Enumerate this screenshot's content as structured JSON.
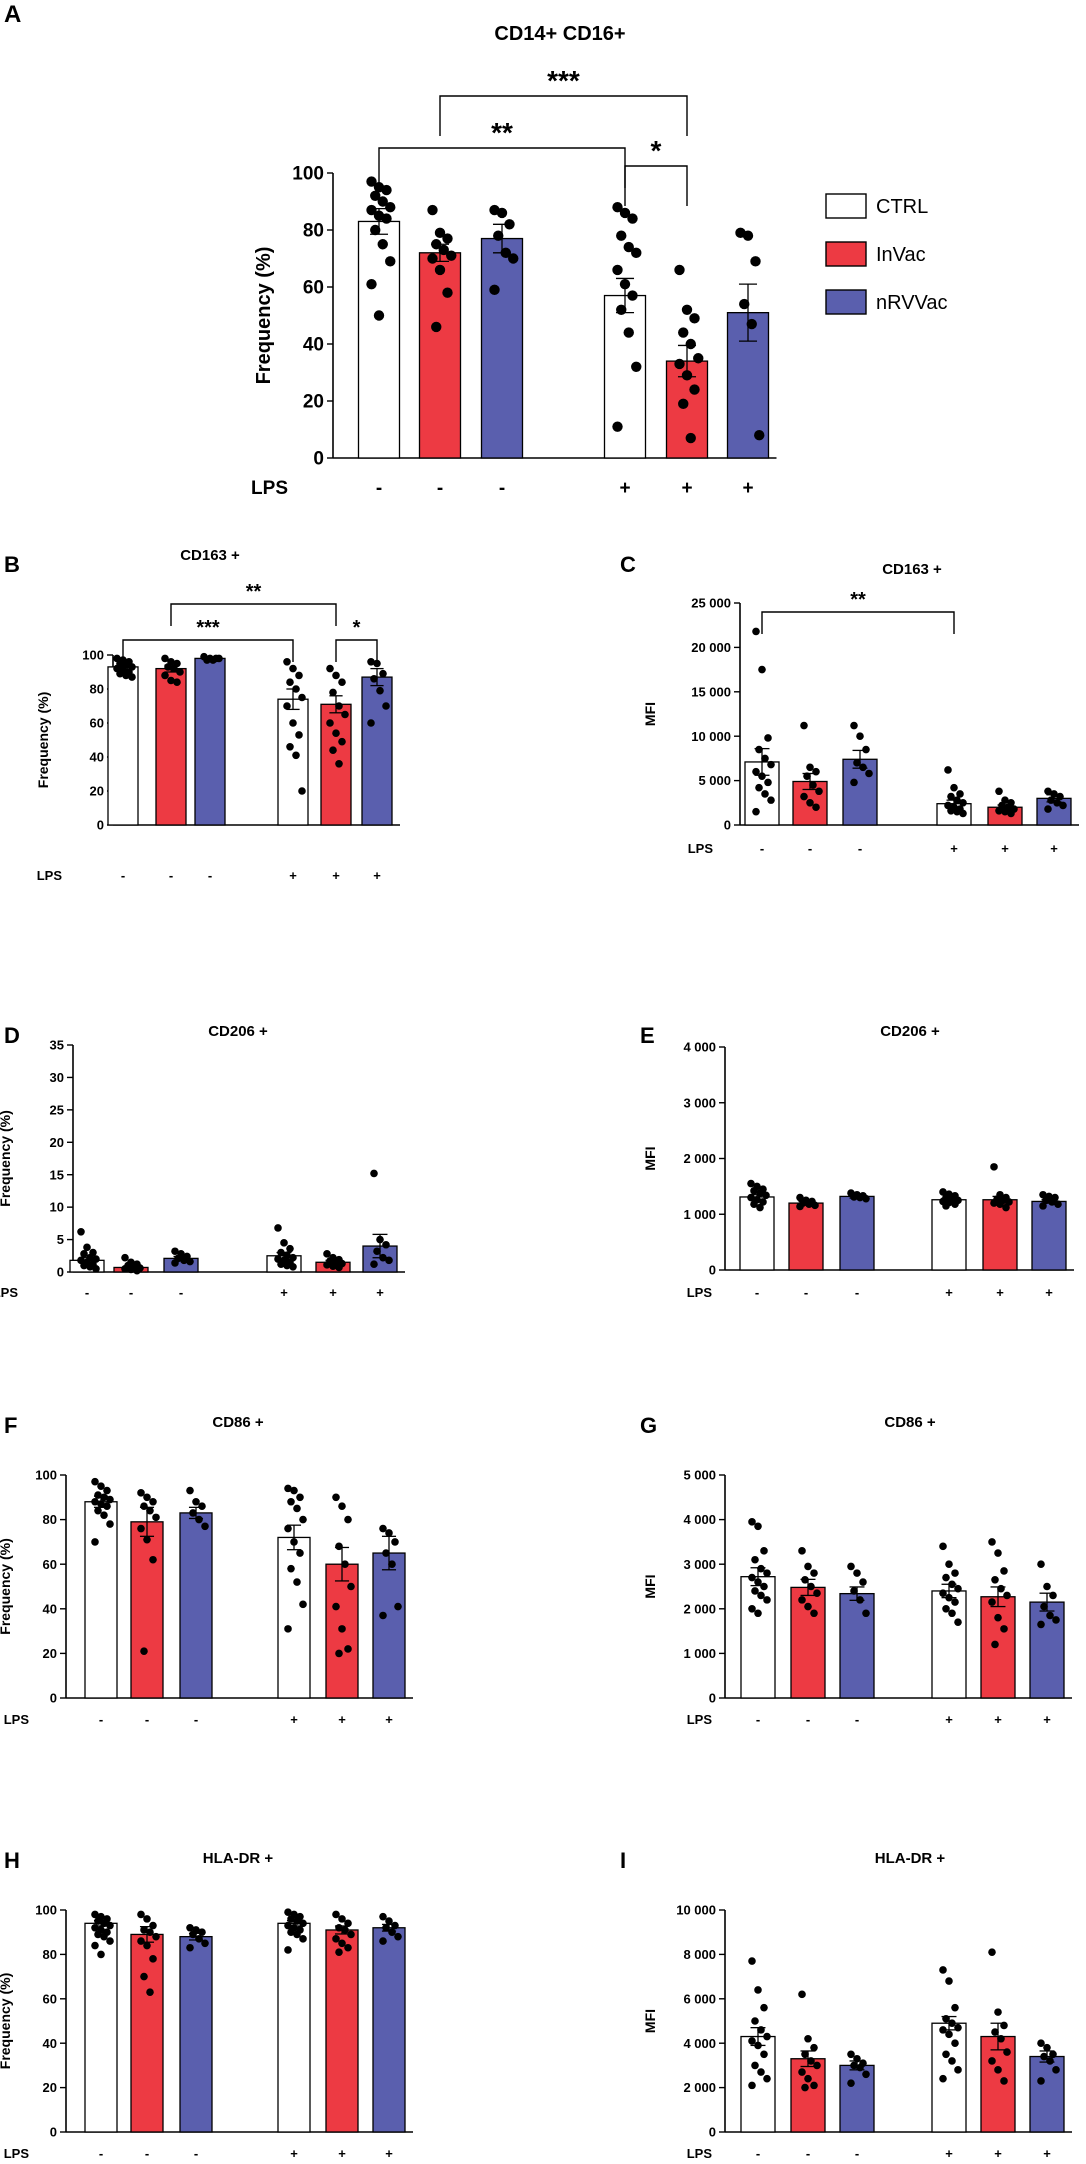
{
  "colors": {
    "CTRL": "#ffffff",
    "InVac": "#ed3a43",
    "nRVVac": "#5a5fae",
    "dot": "#000000"
  },
  "legend": {
    "items": [
      {
        "label": "CTRL",
        "color": "#ffffff"
      },
      {
        "label": "InVac",
        "color": "#ed3a43"
      },
      {
        "label": "nRVVac",
        "color": "#5a5fae"
      }
    ]
  },
  "lps": {
    "label": "LPS",
    "signs": [
      "-",
      "-",
      "-",
      "+",
      "+",
      "+"
    ]
  },
  "chart_data": [
    {
      "panel": "A",
      "title": "CD14+ CD16+",
      "type": "bar",
      "ylabel": "Frequency (%)",
      "ylim": [
        0,
        100
      ],
      "yticks": [
        "0",
        "20",
        "40",
        "60",
        "80",
        "100"
      ],
      "categories": [
        "CTRL",
        "InVac",
        "nRVVac",
        "CTRL",
        "InVac",
        "nRVVac"
      ],
      "values": [
        83,
        72,
        77,
        57,
        34,
        51
      ],
      "sem": [
        4.5,
        3,
        5,
        6,
        5.5,
        10
      ],
      "points": [
        [
          97,
          95,
          94,
          92,
          90,
          88,
          87,
          85,
          84,
          80,
          75,
          69,
          61,
          50
        ],
        [
          87,
          79,
          77,
          75,
          73,
          71,
          70,
          66,
          58,
          46
        ],
        [
          87,
          86,
          82,
          78,
          72,
          70,
          59
        ],
        [
          88,
          86,
          84,
          78,
          74,
          72,
          66,
          61,
          57,
          52,
          44,
          32,
          11
        ],
        [
          66,
          52,
          49,
          44,
          40,
          35,
          33,
          29,
          24,
          19,
          7
        ],
        [
          79,
          78,
          69,
          54,
          47,
          8
        ]
      ],
      "significance": [
        {
          "from": 0,
          "to": 3,
          "label": "**"
        },
        {
          "from": 1,
          "to": 4,
          "label": "***"
        },
        {
          "from": 3,
          "to": 4,
          "label": "*"
        }
      ]
    },
    {
      "panel": "B",
      "title": "CD163 +",
      "type": "bar",
      "ylabel": "Frequency (%)",
      "ylim": [
        0,
        100
      ],
      "yticks": [
        "0",
        "20",
        "40",
        "60",
        "80",
        "100"
      ],
      "categories": [
        "CTRL",
        "InVac",
        "nRVVac",
        "CTRL",
        "InVac",
        "nRVVac"
      ],
      "values": [
        93,
        92,
        98,
        74,
        71,
        87
      ],
      "sem": [
        1.5,
        2,
        0.5,
        6,
        5,
        5
      ],
      "points": [
        [
          98,
          97,
          96,
          95,
          94,
          93,
          92,
          91,
          90,
          89,
          88,
          87
        ],
        [
          98,
          96,
          95,
          93,
          92,
          90,
          88,
          85,
          84
        ],
        [
          99,
          98,
          98,
          97,
          97,
          98
        ],
        [
          96,
          92,
          88,
          84,
          80,
          75,
          70,
          60,
          53,
          46,
          41,
          20
        ],
        [
          92,
          88,
          84,
          78,
          70,
          65,
          60,
          54,
          49,
          44,
          36
        ],
        [
          96,
          95,
          89,
          86,
          79,
          70,
          60
        ]
      ],
      "significance": [
        {
          "from": 0,
          "to": 3,
          "label": "***"
        },
        {
          "from": 1,
          "to": 4,
          "label": "**"
        },
        {
          "from": 4,
          "to": 5,
          "label": "*"
        }
      ]
    },
    {
      "panel": "C",
      "title": "CD163 +",
      "type": "bar",
      "ylabel": "MFI",
      "ylim": [
        0,
        25000
      ],
      "yticks": [
        "0",
        "5 000",
        "10 000",
        "15 000",
        "20 000",
        "25 000"
      ],
      "categories": [
        "CTRL",
        "InVac",
        "nRVVac",
        "CTRL",
        "InVac",
        "nRVVac"
      ],
      "values": [
        7100,
        4900,
        7400,
        2400,
        2000,
        3000
      ],
      "sem": [
        1500,
        900,
        1000,
        400,
        250,
        400
      ],
      "points": [
        [
          21800,
          17500,
          9800,
          8500,
          7500,
          6800,
          6000,
          5500,
          4800,
          4200,
          3500,
          2800,
          1500
        ],
        [
          11200,
          6500,
          6000,
          5500,
          4500,
          3800,
          3200,
          2500,
          2000
        ],
        [
          11200,
          10000,
          8500,
          7000,
          6500,
          5800,
          4800
        ],
        [
          6200,
          4200,
          3500,
          3200,
          2800,
          2500,
          2200,
          2000,
          1800,
          1600,
          1500,
          1300
        ],
        [
          3800,
          2800,
          2500,
          2200,
          2000,
          1800,
          1600,
          1500,
          1300
        ],
        [
          3800,
          3500,
          3200,
          2800,
          2500,
          2200,
          1800
        ]
      ],
      "significance": [
        {
          "from": 0,
          "to": 3,
          "label": "**"
        }
      ]
    },
    {
      "panel": "D",
      "title": "CD206 +",
      "type": "bar",
      "ylabel": "Frequency (%)",
      "ylim": [
        0,
        35
      ],
      "yticks": [
        "0",
        "5",
        "10",
        "15",
        "20",
        "25",
        "30",
        "35"
      ],
      "categories": [
        "CTRL",
        "InVac",
        "nRVVac",
        "CTRL",
        "InVac",
        "nRVVac"
      ],
      "values": [
        1.8,
        0.7,
        2.1,
        2.5,
        1.5,
        4
      ],
      "sem": [
        0.4,
        0.2,
        0.3,
        0.5,
        0.3,
        1.8
      ],
      "points": [
        [
          6.2,
          3.8,
          3,
          2.8,
          2.2,
          2,
          1.8,
          1.5,
          1.2,
          1,
          0.8,
          0.5
        ],
        [
          2.2,
          1.5,
          1.2,
          1,
          0.8,
          0.6,
          0.5,
          0.4,
          0.2
        ],
        [
          3.2,
          2.8,
          2.4,
          2.1,
          1.8,
          1.6,
          1.4
        ],
        [
          6.8,
          4.5,
          3.6,
          3,
          2.6,
          2.2,
          2,
          1.8,
          1.5,
          1.2,
          1,
          0.8
        ],
        [
          2.8,
          2.2,
          1.9,
          1.7,
          1.5,
          1.3,
          1.1,
          0.9,
          0.7
        ],
        [
          15.2,
          5,
          4.2,
          3.2,
          2.2,
          1.8,
          1.2
        ]
      ],
      "significance": []
    },
    {
      "panel": "E",
      "title": "CD206 +",
      "type": "bar",
      "ylabel": "MFI",
      "ylim": [
        0,
        4000
      ],
      "yticks": [
        "0",
        "1 000",
        "2 000",
        "3 000",
        "4 000"
      ],
      "categories": [
        "CTRL",
        "InVac",
        "nRVVac",
        "CTRL",
        "InVac",
        "nRVVac"
      ],
      "values": [
        1310,
        1200,
        1320,
        1260,
        1260,
        1230
      ],
      "sem": [
        40,
        30,
        30,
        25,
        60,
        30
      ],
      "points": [
        [
          1550,
          1500,
          1450,
          1420,
          1380,
          1340,
          1300,
          1260,
          1220,
          1180,
          1120
        ],
        [
          1300,
          1250,
          1230,
          1200,
          1180,
          1160,
          1140
        ],
        [
          1380,
          1350,
          1330,
          1310,
          1300,
          1280
        ],
        [
          1400,
          1360,
          1330,
          1300,
          1270,
          1250,
          1230,
          1210,
          1180,
          1150
        ],
        [
          1850,
          1350,
          1300,
          1270,
          1250,
          1220,
          1200,
          1180,
          1120
        ],
        [
          1350,
          1320,
          1300,
          1250,
          1220,
          1180,
          1150
        ]
      ],
      "significance": []
    },
    {
      "panel": "F",
      "title": "CD86 +",
      "type": "bar",
      "ylabel": "Frequency (%)",
      "ylim": [
        0,
        100
      ],
      "yticks": [
        "0",
        "20",
        "40",
        "60",
        "80",
        "100"
      ],
      "categories": [
        "CTRL",
        "InVac",
        "nRVVac",
        "CTRL",
        "InVac",
        "nRVVac"
      ],
      "values": [
        88,
        79,
        83,
        72,
        60,
        65
      ],
      "sem": [
        2.5,
        6.5,
        2.5,
        5.5,
        7.5,
        7.5
      ],
      "points": [
        [
          97,
          95,
          93,
          91,
          90,
          89,
          88,
          87,
          86,
          84,
          82,
          78,
          70
        ],
        [
          92,
          90,
          88,
          86,
          84,
          81,
          76,
          71,
          62,
          21
        ],
        [
          93,
          88,
          86,
          83,
          80,
          77
        ],
        [
          94,
          93,
          90,
          88,
          85,
          80,
          76,
          70,
          65,
          58,
          52,
          42,
          31
        ],
        [
          90,
          86,
          80,
          68,
          60,
          50,
          41,
          31,
          22,
          20
        ],
        [
          76,
          74,
          70,
          65,
          60,
          41,
          37
        ]
      ],
      "significance": []
    },
    {
      "panel": "G",
      "title": "CD86 +",
      "type": "bar",
      "ylabel": "MFI",
      "ylim": [
        0,
        5000
      ],
      "yticks": [
        "0",
        "1 000",
        "2 000",
        "3 000",
        "4 000",
        "5 000"
      ],
      "categories": [
        "CTRL",
        "InVac",
        "nRVVac",
        "CTRL",
        "InVac",
        "nRVVac"
      ],
      "values": [
        2720,
        2480,
        2340,
        2400,
        2270,
        2150
      ],
      "sem": [
        200,
        180,
        150,
        150,
        220,
        200
      ],
      "points": [
        [
          3950,
          3850,
          3300,
          3100,
          2900,
          2800,
          2700,
          2600,
          2500,
          2400,
          2300,
          2200,
          2000,
          1900
        ],
        [
          3300,
          2950,
          2800,
          2650,
          2500,
          2350,
          2200,
          2050,
          1900
        ],
        [
          2950,
          2800,
          2600,
          2400,
          2200,
          1900
        ],
        [
          3400,
          3000,
          2800,
          2700,
          2550,
          2450,
          2350,
          2250,
          2150,
          2000,
          1900,
          1700
        ],
        [
          3500,
          3250,
          2850,
          2650,
          2450,
          2300,
          2150,
          1800,
          1550,
          1200
        ],
        [
          3000,
          2500,
          2300,
          2050,
          1850,
          1750,
          1650
        ]
      ],
      "significance": []
    },
    {
      "panel": "H",
      "title": "HLA-DR +",
      "type": "bar",
      "ylabel": "Frequency (%)",
      "ylim": [
        0,
        100
      ],
      "yticks": [
        "0",
        "20",
        "40",
        "60",
        "80",
        "100"
      ],
      "categories": [
        "CTRL",
        "InVac",
        "nRVVac",
        "CTRL",
        "InVac",
        "nRVVac"
      ],
      "values": [
        94,
        89,
        88,
        94,
        91,
        92
      ],
      "sem": [
        1.2,
        3.5,
        1.5,
        1.2,
        1.8,
        1.5
      ],
      "points": [
        [
          98,
          97,
          96,
          95,
          94,
          93,
          92,
          91,
          90,
          89,
          88,
          86,
          84,
          80
        ],
        [
          98,
          96,
          93,
          91,
          90,
          88,
          86,
          84,
          78,
          70,
          63
        ],
        [
          92,
          91,
          90,
          89,
          87,
          85,
          83
        ],
        [
          99,
          98,
          97,
          96,
          95,
          94,
          93,
          92,
          91,
          90,
          89,
          87,
          82
        ],
        [
          98,
          96,
          94,
          92,
          91,
          89,
          87,
          85,
          83,
          81
        ],
        [
          97,
          95,
          93,
          92,
          90,
          88,
          86
        ]
      ],
      "significance": []
    },
    {
      "panel": "I",
      "title": "HLA-DR +",
      "type": "bar",
      "ylabel": "MFI",
      "ylim": [
        0,
        10000
      ],
      "yticks": [
        "0",
        "2 000",
        "4 000",
        "6 000",
        "8 000",
        "10 000"
      ],
      "categories": [
        "CTRL",
        "InVac",
        "nRVVac",
        "CTRL",
        "InVac",
        "nRVVac"
      ],
      "values": [
        4300,
        3300,
        3000,
        4900,
        4300,
        3400
      ],
      "sem": [
        400,
        350,
        200,
        300,
        600,
        250
      ],
      "points": [
        [
          7700,
          6400,
          5600,
          5000,
          4600,
          4300,
          4100,
          3900,
          3500,
          3000,
          2700,
          2400,
          2100
        ],
        [
          6200,
          4200,
          3800,
          3500,
          3200,
          3000,
          2700,
          2400,
          2100,
          2000
        ],
        [
          3500,
          3300,
          3100,
          3000,
          2900,
          2600,
          2200
        ],
        [
          7300,
          6800,
          5600,
          5100,
          4900,
          4700,
          4600,
          4400,
          4000,
          3500,
          3200,
          2800,
          2400
        ],
        [
          8100,
          5400,
          4800,
          4500,
          4200,
          3600,
          3200,
          2800,
          2300
        ],
        [
          4000,
          3800,
          3500,
          3400,
          3200,
          2800,
          2300
        ]
      ],
      "significance": []
    }
  ]
}
